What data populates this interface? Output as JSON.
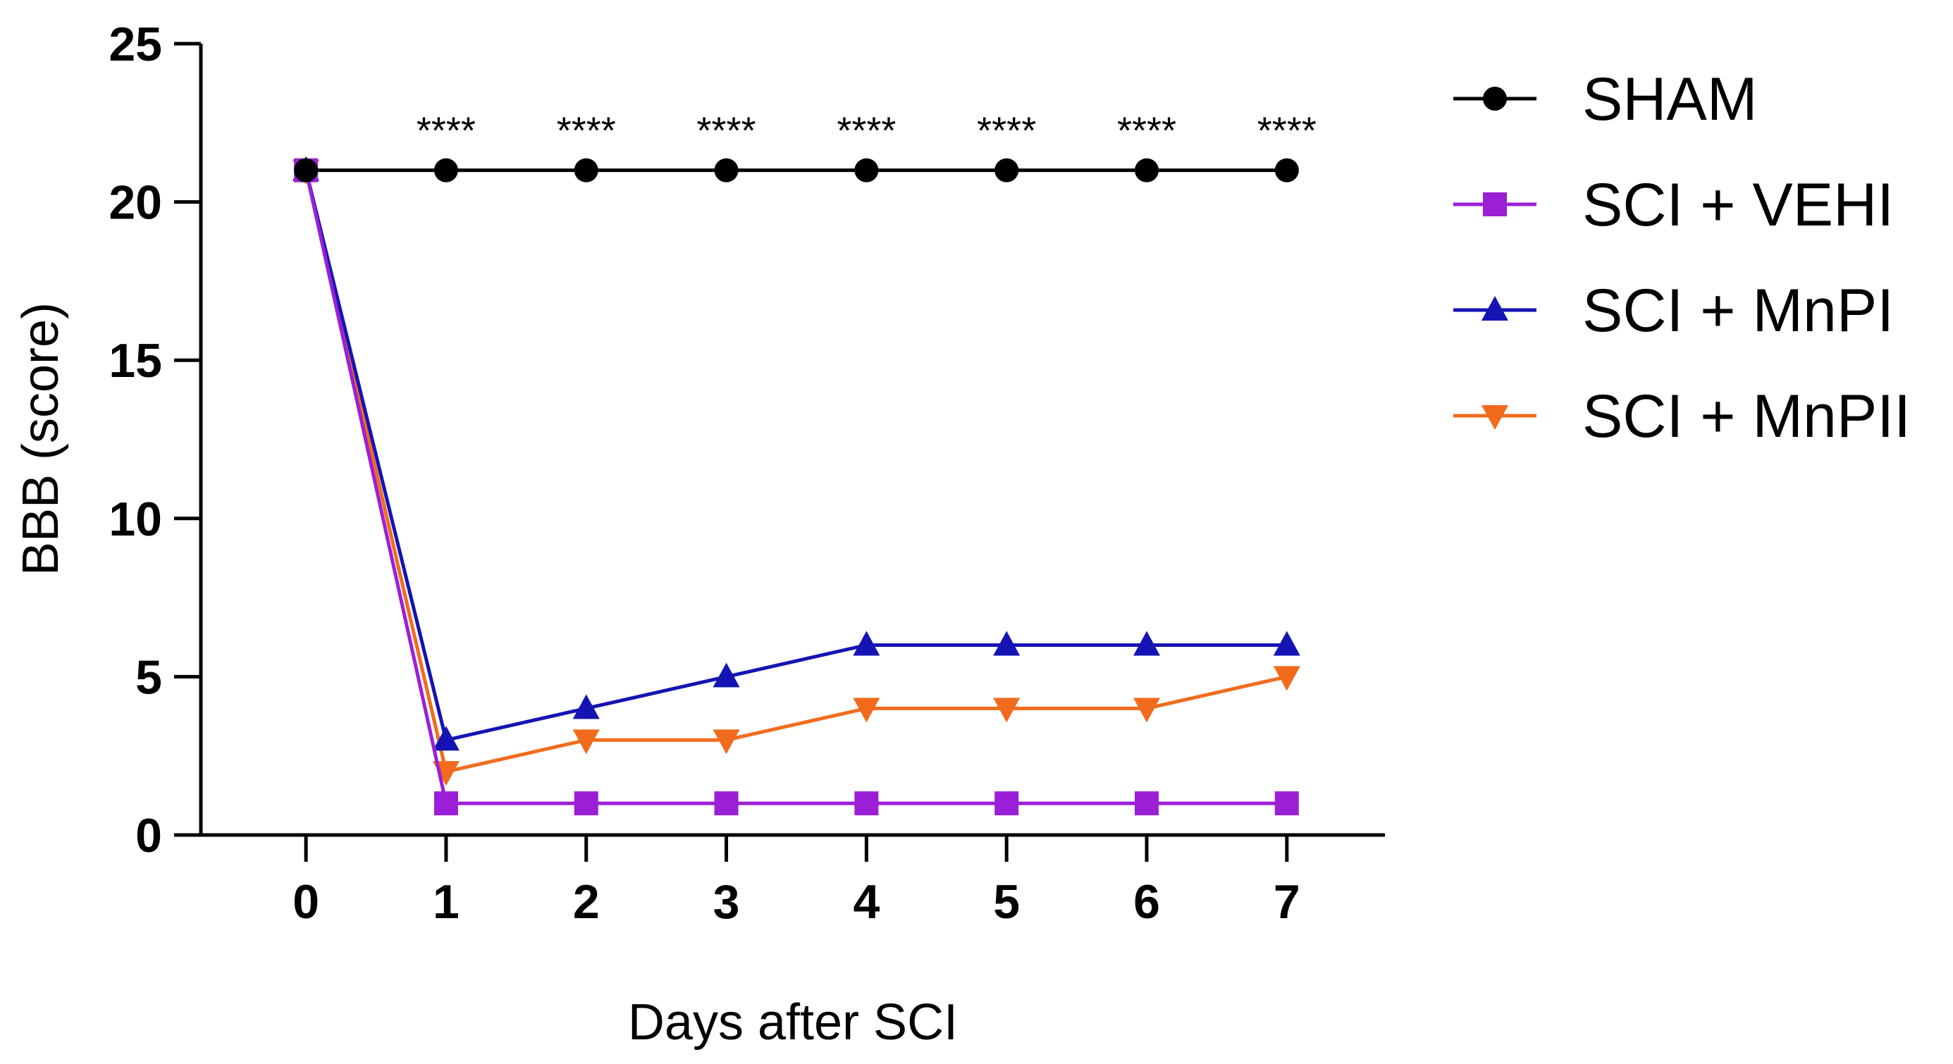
{
  "chart_data": {
    "type": "line",
    "title": "",
    "xlabel": "Days after SCI",
    "ylabel": "BBB (score)",
    "x": [
      0,
      1,
      2,
      3,
      4,
      5,
      6,
      7
    ],
    "xticks": [
      "0",
      "1",
      "2",
      "3",
      "4",
      "5",
      "6",
      "7"
    ],
    "yticks": [
      "0",
      "5",
      "10",
      "15",
      "20",
      "25"
    ],
    "ylim": [
      0,
      25
    ],
    "xlim": [
      -0.75,
      7.7
    ],
    "grid": false,
    "legend_position": "right",
    "series": [
      {
        "name": "SHAM",
        "values": [
          21,
          21,
          21,
          21,
          21,
          21,
          21,
          21
        ],
        "color": "#000000",
        "marker": "circle"
      },
      {
        "name": "SCI + VEHI",
        "values": [
          21,
          1,
          1,
          1,
          1,
          1,
          1,
          1
        ],
        "color": "#9b1fd6",
        "marker": "square"
      },
      {
        "name": "SCI + MnPI",
        "values": [
          21,
          3,
          4,
          5,
          6,
          6,
          6,
          6
        ],
        "color": "#1414b4",
        "marker": "triangle-up"
      },
      {
        "name": "SCI + MnPII",
        "values": [
          21,
          2,
          3,
          3,
          4,
          4,
          4,
          5
        ],
        "color": "#f26b1d",
        "marker": "triangle-down"
      }
    ],
    "annotations": [
      {
        "x": 1,
        "text": "****"
      },
      {
        "x": 2,
        "text": "****"
      },
      {
        "x": 3,
        "text": "****"
      },
      {
        "x": 4,
        "text": "****"
      },
      {
        "x": 5,
        "text": "****"
      },
      {
        "x": 6,
        "text": "****"
      },
      {
        "x": 7,
        "text": "****"
      }
    ]
  }
}
